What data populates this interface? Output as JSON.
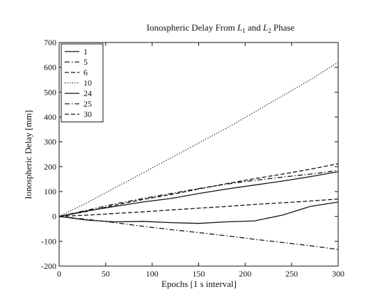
{
  "chart_data": {
    "type": "line",
    "title_parts": {
      "a": "Ionospheric Delay From ",
      "b": "L",
      "b_sub": "1",
      "c": " and ",
      "d": "L",
      "d_sub": "2",
      "e": " Phase"
    },
    "xlabel": "Epochs  [1 s interval]",
    "ylabel": "Ionospheric Delay  [mm]",
    "xlim": [
      0,
      300
    ],
    "ylim": [
      -200,
      700
    ],
    "xticks": [
      0,
      50,
      100,
      150,
      200,
      250,
      300
    ],
    "yticks": [
      -200,
      -100,
      0,
      100,
      200,
      300,
      400,
      500,
      600,
      700
    ],
    "grid": false,
    "legend_position": "top-left",
    "series": [
      {
        "name": "1",
        "style": "solid",
        "x": [
          0,
          30,
          60,
          90,
          120,
          150,
          180,
          210,
          240,
          270,
          300
        ],
        "y": [
          0,
          22,
          40,
          58,
          72,
          92,
          110,
          126,
          142,
          160,
          180
        ]
      },
      {
        "name": "5",
        "style": "dashdot",
        "x": [
          0,
          30,
          60,
          90,
          120,
          150,
          180,
          210,
          240,
          270,
          300
        ],
        "y": [
          0,
          -12,
          -25,
          -40,
          -53,
          -65,
          -78,
          -92,
          -105,
          -118,
          -133
        ]
      },
      {
        "name": "6",
        "style": "dashed",
        "x": [
          0,
          30,
          60,
          90,
          120,
          150,
          180,
          210,
          240,
          270,
          300
        ],
        "y": [
          0,
          20,
          45,
          68,
          88,
          110,
          132,
          152,
          170,
          190,
          212
        ]
      },
      {
        "name": "10",
        "style": "dotted",
        "x": [
          0,
          30,
          60,
          90,
          120,
          150,
          180,
          210,
          240,
          270,
          300
        ],
        "y": [
          0,
          55,
          115,
          175,
          235,
          295,
          355,
          420,
          485,
          550,
          620
        ]
      },
      {
        "name": "24",
        "style": "solid",
        "x": [
          0,
          30,
          60,
          90,
          120,
          150,
          180,
          210,
          240,
          270,
          300
        ],
        "y": [
          0,
          -15,
          -22,
          -20,
          -25,
          -28,
          -22,
          -18,
          5,
          40,
          58
        ]
      },
      {
        "name": "25",
        "style": "dashdot",
        "x": [
          0,
          30,
          60,
          90,
          120,
          150,
          180,
          210,
          240,
          270,
          300
        ],
        "y": [
          0,
          25,
          50,
          72,
          92,
          112,
          130,
          145,
          158,
          170,
          185
        ]
      },
      {
        "name": "30",
        "style": "dashed",
        "x": [
          0,
          30,
          60,
          90,
          120,
          150,
          180,
          210,
          240,
          270,
          300
        ],
        "y": [
          0,
          5,
          12,
          18,
          26,
          33,
          40,
          48,
          55,
          62,
          70
        ]
      }
    ]
  }
}
